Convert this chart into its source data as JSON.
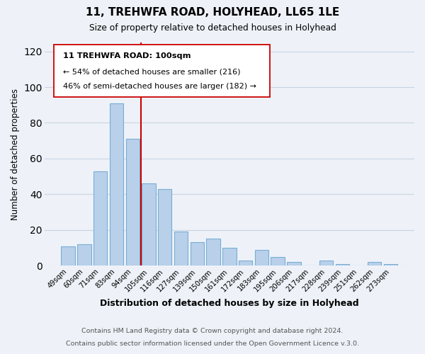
{
  "title": "11, TREHWFA ROAD, HOLYHEAD, LL65 1LE",
  "subtitle": "Size of property relative to detached houses in Holyhead",
  "xlabel": "Distribution of detached houses by size in Holyhead",
  "ylabel": "Number of detached properties",
  "bar_labels": [
    "49sqm",
    "60sqm",
    "71sqm",
    "83sqm",
    "94sqm",
    "105sqm",
    "116sqm",
    "127sqm",
    "139sqm",
    "150sqm",
    "161sqm",
    "172sqm",
    "183sqm",
    "195sqm",
    "206sqm",
    "217sqm",
    "228sqm",
    "239sqm",
    "251sqm",
    "262sqm",
    "273sqm"
  ],
  "bar_values": [
    11,
    12,
    53,
    91,
    71,
    46,
    43,
    19,
    13,
    15,
    10,
    3,
    9,
    5,
    2,
    0,
    3,
    1,
    0,
    2,
    1
  ],
  "bar_color": "#b8d0ea",
  "bar_edge_color": "#7aadd4",
  "vline_x": 4.5,
  "vline_color": "#cc0000",
  "ylim": [
    0,
    125
  ],
  "yticks": [
    0,
    20,
    40,
    60,
    80,
    100,
    120
  ],
  "annotation_title": "11 TREHWFA ROAD: 100sqm",
  "annotation_line1": "← 54% of detached houses are smaller (216)",
  "annotation_line2": "46% of semi-detached houses are larger (182) →",
  "footer_line1": "Contains HM Land Registry data © Crown copyright and database right 2024.",
  "footer_line2": "Contains public sector information licensed under the Open Government Licence v.3.0.",
  "background_color": "#eef2f8",
  "plot_background_color": "#eef2f8",
  "grid_color": "#c8d4e4"
}
